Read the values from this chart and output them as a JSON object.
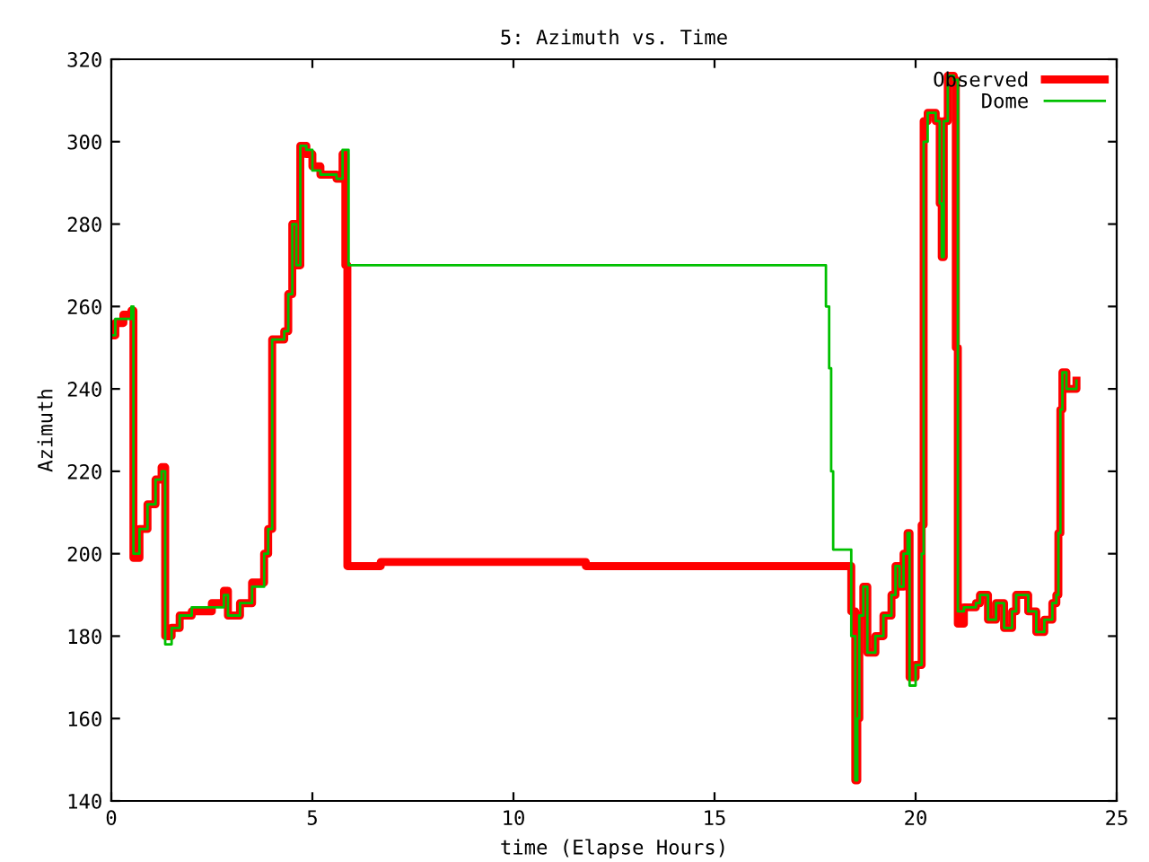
{
  "chart_data": {
    "type": "step",
    "title": "5: Azimuth vs. Time",
    "xlabel": "time (Elapse Hours)",
    "ylabel": "Azimuth",
    "xlim": [
      0,
      25
    ],
    "ylim": [
      140,
      320
    ],
    "xticks": [
      0,
      5,
      10,
      15,
      20,
      25
    ],
    "yticks": [
      140,
      160,
      180,
      200,
      220,
      240,
      260,
      280,
      300,
      320
    ],
    "grid": false,
    "legend": "top right",
    "series": [
      {
        "name": "Observed",
        "color": "#ff0000",
        "x": [
          0,
          0.1,
          0.3,
          0.5,
          0.55,
          0.7,
          0.9,
          1.1,
          1.25,
          1.34,
          1.5,
          1.7,
          2.0,
          2.5,
          2.8,
          2.9,
          3.2,
          3.5,
          3.8,
          3.9,
          4.0,
          4.3,
          4.4,
          4.5,
          4.6,
          4.7,
          4.85,
          5.0,
          5.2,
          5.6,
          5.75,
          5.82,
          5.87,
          6.7,
          11.8,
          18.4,
          18.5,
          18.55,
          18.6,
          18.7,
          18.8,
          19.0,
          19.2,
          19.4,
          19.5,
          19.6,
          19.7,
          19.8,
          19.85,
          20.0,
          20.15,
          20.2,
          20.3,
          20.5,
          20.6,
          20.65,
          20.7,
          20.8,
          20.95,
          21.0,
          21.05,
          21.2,
          21.5,
          21.6,
          21.8,
          22.0,
          22.2,
          22.4,
          22.5,
          22.8,
          23.0,
          23.2,
          23.4,
          23.5,
          23.55,
          23.6,
          23.65,
          23.75,
          24.0
        ],
        "values": [
          253,
          256,
          258,
          259,
          199,
          206,
          212,
          218,
          221,
          180,
          182,
          185,
          186,
          188,
          191,
          185,
          188,
          193,
          200,
          206,
          252,
          254,
          263,
          280,
          270,
          299,
          297,
          294,
          292,
          291,
          297,
          270,
          197,
          198,
          197,
          186,
          145,
          160,
          185,
          192,
          176,
          180,
          185,
          190,
          197,
          192,
          200,
          205,
          170,
          173,
          207,
          305,
          307,
          305,
          285,
          272,
          305,
          316,
          315,
          250,
          183,
          187,
          188,
          190,
          184,
          188,
          182,
          186,
          190,
          186,
          181,
          184,
          188,
          190,
          205,
          235,
          244,
          240,
          242
        ]
      },
      {
        "name": "Dome",
        "color": "#00c000",
        "x": [
          0,
          0.1,
          0.3,
          0.5,
          0.55,
          0.7,
          0.9,
          1.1,
          1.25,
          1.34,
          1.5,
          1.7,
          2.0,
          2.5,
          2.8,
          2.9,
          3.2,
          3.5,
          3.8,
          3.9,
          4.0,
          4.3,
          4.4,
          4.5,
          4.6,
          4.7,
          4.85,
          5.0,
          5.2,
          5.6,
          5.75,
          5.9,
          17.77,
          17.85,
          17.9,
          17.95,
          18.0,
          18.4,
          18.5,
          18.55,
          18.6,
          18.7,
          18.8,
          19.0,
          19.2,
          19.4,
          19.5,
          19.6,
          19.7,
          19.8,
          19.85,
          20.0,
          20.15,
          20.2,
          20.3,
          20.5,
          20.6,
          20.65,
          20.7,
          20.8,
          20.95,
          21.05,
          21.2,
          21.5,
          21.6,
          21.8,
          22.0,
          22.2,
          22.4,
          22.5,
          22.8,
          23.0,
          23.2,
          23.4,
          23.5,
          23.55,
          23.6,
          23.65,
          23.75,
          24.0
        ],
        "values": [
          253,
          257,
          257,
          260,
          200,
          206,
          212,
          218,
          220,
          178,
          182,
          185,
          187,
          187,
          190,
          185,
          188,
          192,
          200,
          206,
          252,
          254,
          263,
          280,
          270,
          299,
          298,
          293,
          292,
          291,
          298,
          270,
          260,
          245,
          220,
          201,
          201,
          180,
          145,
          160,
          185,
          192,
          176,
          180,
          185,
          190,
          197,
          192,
          200,
          205,
          168,
          173,
          200,
          300,
          307,
          305,
          285,
          272,
          305,
          316,
          315,
          186,
          187,
          188,
          190,
          184,
          188,
          182,
          186,
          190,
          186,
          181,
          184,
          188,
          190,
          205,
          235,
          244,
          240,
          242
        ]
      }
    ]
  }
}
